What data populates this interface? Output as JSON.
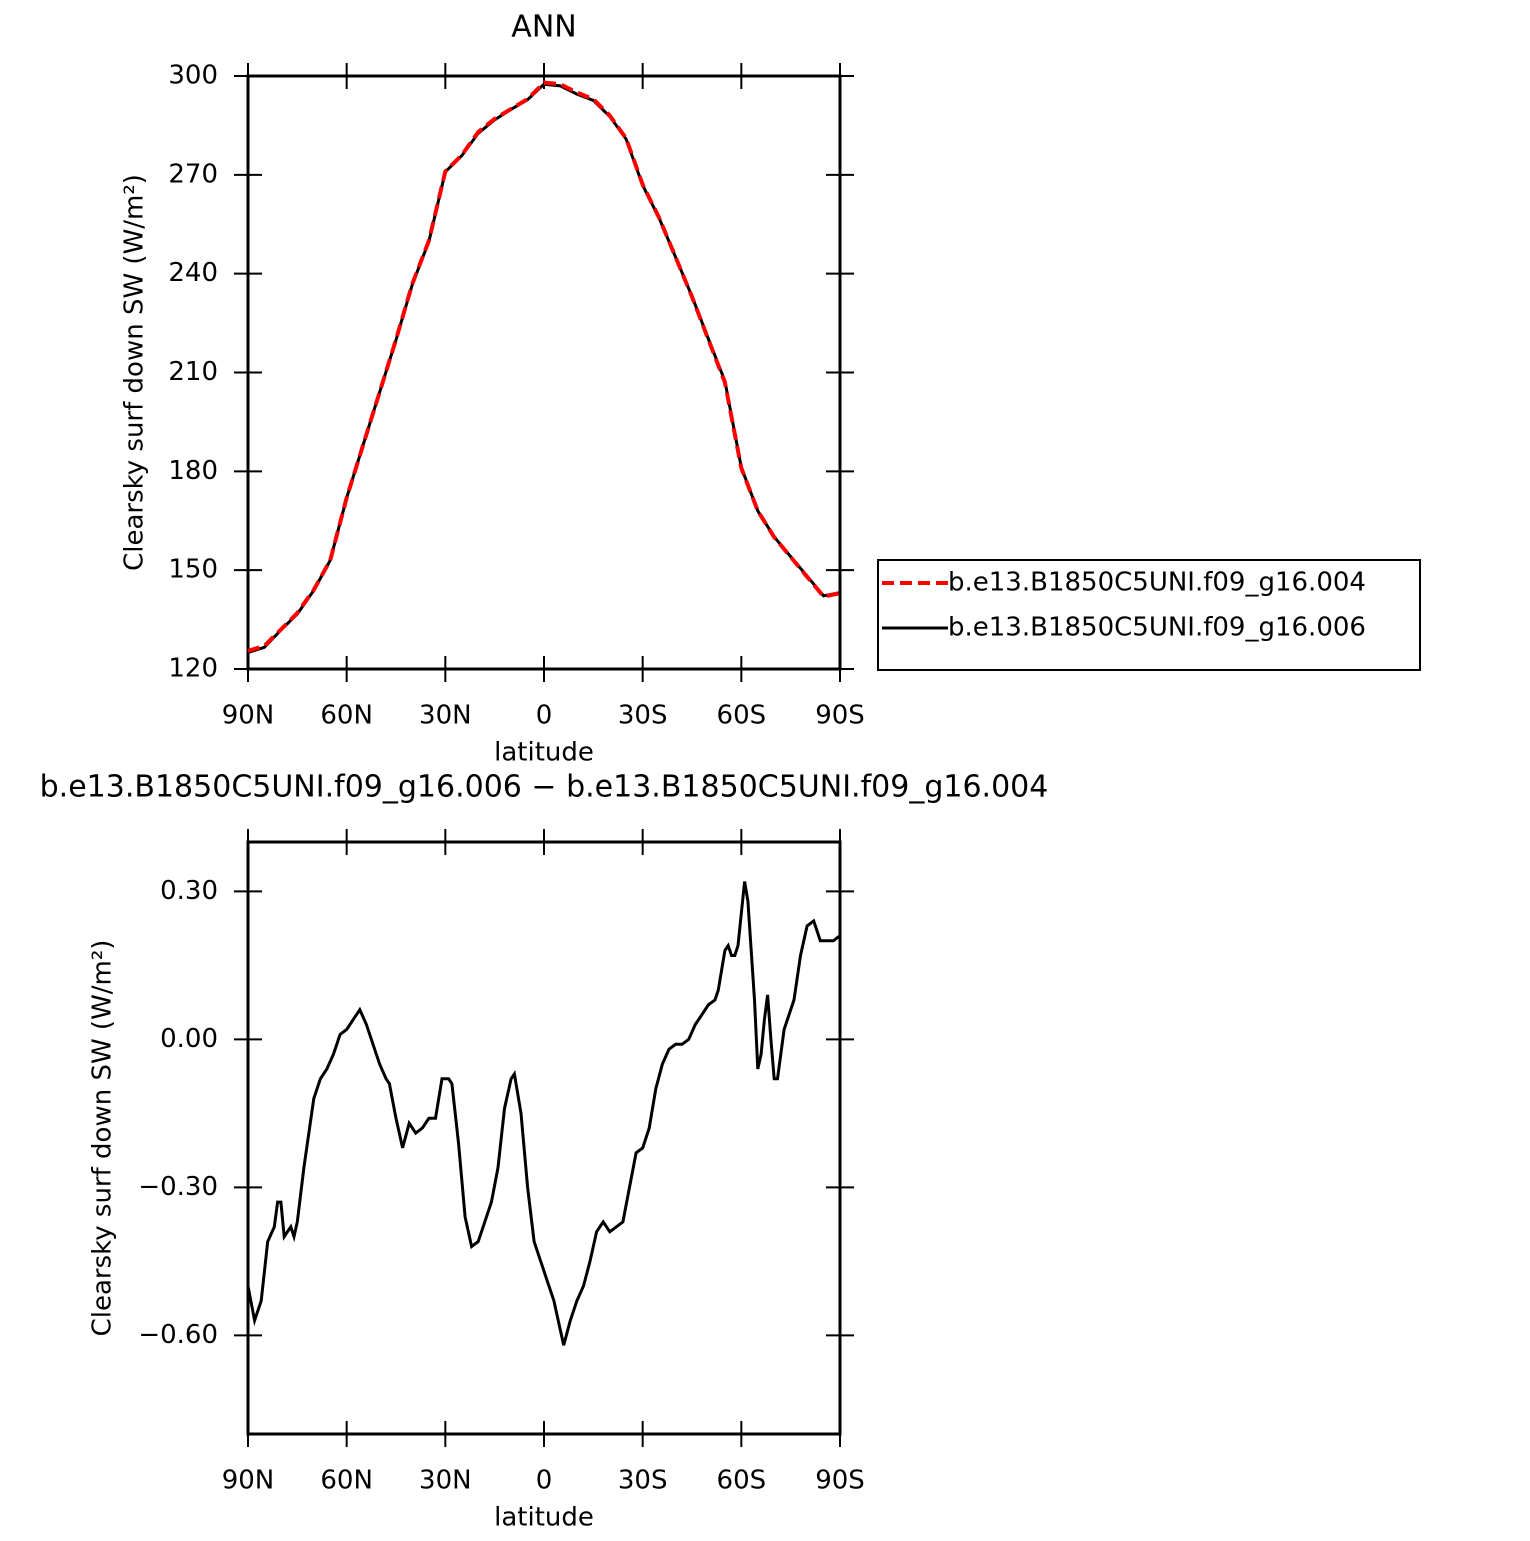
{
  "chart_data": [
    {
      "type": "line",
      "title": "ANN",
      "xlabel": "latitude",
      "ylabel": "Clearsky surf down SW (W/m²)",
      "x": [
        90,
        85,
        80,
        75,
        70,
        65,
        60,
        55,
        50,
        45,
        40,
        35,
        30,
        25,
        20,
        15,
        10,
        5,
        0,
        -5,
        -10,
        -15,
        -20,
        -25,
        -30,
        -35,
        -40,
        -45,
        -50,
        -55,
        -60,
        -65,
        -70,
        -75,
        -80,
        -85,
        -90
      ],
      "series": [
        {
          "name": "b.e13.B1850C5UNI.f09_g16.004",
          "color": "#ff0000",
          "dash": true,
          "values": [
            125.5,
            127,
            132,
            137,
            144,
            153,
            172,
            188,
            204,
            220,
            237,
            250,
            271,
            276,
            283,
            287,
            290,
            293,
            298,
            297.5,
            295,
            293,
            288,
            281,
            267,
            257,
            245,
            233,
            220,
            207,
            181,
            168,
            160,
            154,
            148,
            142,
            143
          ]
        },
        {
          "name": "b.e13.B1850C5UNI.f09_g16.006",
          "color": "#000000",
          "dash": false,
          "values": [
            125,
            126.6,
            131.8,
            136.7,
            143.9,
            153,
            172,
            188,
            204,
            219.9,
            236.8,
            249.8,
            270.9,
            275.8,
            282.6,
            286.7,
            289.9,
            292.8,
            297.5,
            297,
            294.5,
            292.6,
            287.7,
            280.8,
            266.8,
            256.9,
            245,
            233.1,
            220.2,
            207.4,
            181.2,
            168,
            160.1,
            154.1,
            148.2,
            142.2,
            143.2
          ]
        }
      ],
      "xlim": [
        90,
        -90
      ],
      "xticks": [
        {
          "value": 90,
          "label": "90N"
        },
        {
          "value": 60,
          "label": "60N"
        },
        {
          "value": 30,
          "label": "30N"
        },
        0,
        {
          "value": -30,
          "label": "30S"
        },
        {
          "value": -60,
          "label": "60S"
        },
        {
          "value": -90,
          "label": "90S"
        }
      ],
      "ylim": [
        120,
        300
      ],
      "yticks": [
        120,
        150,
        180,
        210,
        240,
        270,
        300
      ],
      "legend": "right"
    },
    {
      "type": "line",
      "title": "b.e13.B1850C5UNI.f09_g16.006 − b.e13.B1850C5UNI.f09_g16.004",
      "xlabel": "latitude",
      "ylabel": "Clearsky surf down SW (W/m²)",
      "x": [
        90,
        88,
        86,
        84,
        82,
        81,
        80,
        79,
        77,
        76,
        75,
        73,
        70,
        68,
        66,
        64,
        62,
        60,
        58,
        56,
        54,
        52,
        50,
        48,
        47,
        45,
        43,
        41,
        39,
        37,
        35,
        33,
        31,
        29,
        28,
        26,
        24,
        22,
        20,
        18,
        16,
        14,
        12,
        10,
        9,
        7,
        5,
        3,
        1,
        -1,
        -3,
        -5,
        -6,
        -8,
        -10,
        -12,
        -14,
        -16,
        -18,
        -20,
        -22,
        -24,
        -26,
        -28,
        -30,
        -32,
        -34,
        -36,
        -38,
        -40,
        -42,
        -44,
        -46,
        -48,
        -50,
        -52,
        -53,
        -55,
        -56,
        -57,
        -58,
        -59,
        -61,
        -62,
        -64,
        -65,
        -66,
        -67,
        -68,
        -69,
        -70,
        -71,
        -73,
        -74,
        -76,
        -78,
        -80,
        -82,
        -84,
        -86,
        -88,
        -90
      ],
      "color": "#000000",
      "values": [
        -0.5,
        -0.57,
        -0.53,
        -0.41,
        -0.38,
        -0.33,
        -0.33,
        -0.4,
        -0.38,
        -0.4,
        -0.37,
        -0.26,
        -0.12,
        -0.08,
        -0.06,
        -0.03,
        0.01,
        0.02,
        0.04,
        0.06,
        0.03,
        -0.01,
        -0.05,
        -0.08,
        -0.09,
        -0.16,
        -0.22,
        -0.17,
        -0.19,
        -0.18,
        -0.16,
        -0.16,
        -0.08,
        -0.08,
        -0.09,
        -0.21,
        -0.36,
        -0.42,
        -0.41,
        -0.37,
        -0.33,
        -0.26,
        -0.14,
        -0.08,
        -0.07,
        -0.15,
        -0.3,
        -0.41,
        -0.45,
        -0.49,
        -0.53,
        -0.59,
        -0.62,
        -0.57,
        -0.53,
        -0.5,
        -0.45,
        -0.39,
        -0.37,
        -0.39,
        -0.38,
        -0.37,
        -0.3,
        -0.23,
        -0.22,
        -0.18,
        -0.1,
        -0.05,
        -0.02,
        -0.01,
        -0.01,
        0,
        0.03,
        0.05,
        0.07,
        0.08,
        0.1,
        0.18,
        0.19,
        0.17,
        0.17,
        0.19,
        0.32,
        0.28,
        0.08,
        -0.06,
        -0.03,
        0.04,
        0.09,
        0,
        -0.08,
        -0.08,
        0.02,
        0.04,
        0.08,
        0.17,
        0.23,
        0.24,
        0.2,
        0.2,
        0.2,
        0.21
      ],
      "xlim": [
        90,
        -90
      ],
      "xticks": [
        {
          "value": 90,
          "label": "90N"
        },
        {
          "value": 60,
          "label": "60N"
        },
        {
          "value": 30,
          "label": "30N"
        },
        0,
        {
          "value": -30,
          "label": "30S"
        },
        {
          "value": -60,
          "label": "60S"
        },
        {
          "value": -90,
          "label": "90S"
        }
      ],
      "ylim": [
        -0.8,
        0.4
      ],
      "yticks": [
        {
          "value": -0.6,
          "label": "−0.60"
        },
        {
          "value": -0.3,
          "label": "−0.30"
        },
        {
          "value": 0,
          "label": "0.00"
        },
        {
          "value": 0.3,
          "label": "0.30"
        }
      ]
    }
  ]
}
